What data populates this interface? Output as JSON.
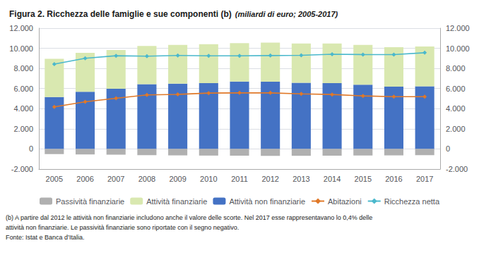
{
  "chart_data": {
    "type": "bar",
    "title": "Figura 2. Ricchezza delle famiglie e sue componenti (b)",
    "subtitle": "(miliardi di euro; 2005-2017)",
    "categories": [
      "2005",
      "2006",
      "2007",
      "2008",
      "2009",
      "2010",
      "2011",
      "2012",
      "2013",
      "2014",
      "2015",
      "2016",
      "2017"
    ],
    "stacked": true,
    "series": [
      {
        "name": "Passività finanziarie",
        "type": "bar",
        "color": "#b0b0b0",
        "values": [
          -520,
          -540,
          -570,
          -620,
          -640,
          -660,
          -670,
          -690,
          -680,
          -670,
          -650,
          -640,
          -620
        ]
      },
      {
        "name": "Attività finanziarie",
        "type": "bar",
        "color": "#d9e8b0",
        "values": [
          3800,
          3870,
          3850,
          3810,
          3840,
          3870,
          3830,
          3890,
          3900,
          3940,
          3950,
          3920,
          3950
        ]
      },
      {
        "name": "Attività non finanziarie",
        "type": "bar",
        "color": "#4472c4",
        "values": [
          5150,
          5680,
          5980,
          6430,
          6490,
          6540,
          6690,
          6680,
          6580,
          6540,
          6380,
          6190,
          6230
        ]
      },
      {
        "name": "Abitazioni",
        "type": "line",
        "color": "#e07828",
        "marker": "diamond",
        "values": [
          4180,
          4690,
          5030,
          5370,
          5420,
          5550,
          5570,
          5570,
          5470,
          5410,
          5270,
          5190,
          5190
        ]
      },
      {
        "name": "Ricchezza netta",
        "type": "line",
        "color": "#4ab8cc",
        "marker": "diamond",
        "values": [
          8430,
          9010,
          9260,
          9220,
          9290,
          9250,
          9250,
          9280,
          9300,
          9410,
          9380,
          9370,
          9560
        ]
      }
    ],
    "ylim": [
      -2000,
      12000
    ],
    "yticks": [
      {
        "value": -2000,
        "label": "-2.000"
      },
      0,
      {
        "value": 2000,
        "label": "2.000"
      },
      {
        "value": 4000,
        "label": "4.000"
      },
      {
        "value": 6000,
        "label": "6.000"
      },
      {
        "value": 8000,
        "label": "8.000"
      },
      {
        "value": 10000,
        "label": "10.000"
      },
      {
        "value": 12000,
        "label": "12.000"
      }
    ],
    "grid": true,
    "legend": "bottom",
    "annotations": [
      "(b) A partire dal 2012 le attività non finanziarie includono anche il valore delle scorte. Nel 2017 esse rappresentavano lo 0,4% delle",
      "attività non finanziarie. Le passività finanziarie sono riportate con il segno negativo.",
      "Fonte: Istat e Banca d’Italia."
    ]
  }
}
